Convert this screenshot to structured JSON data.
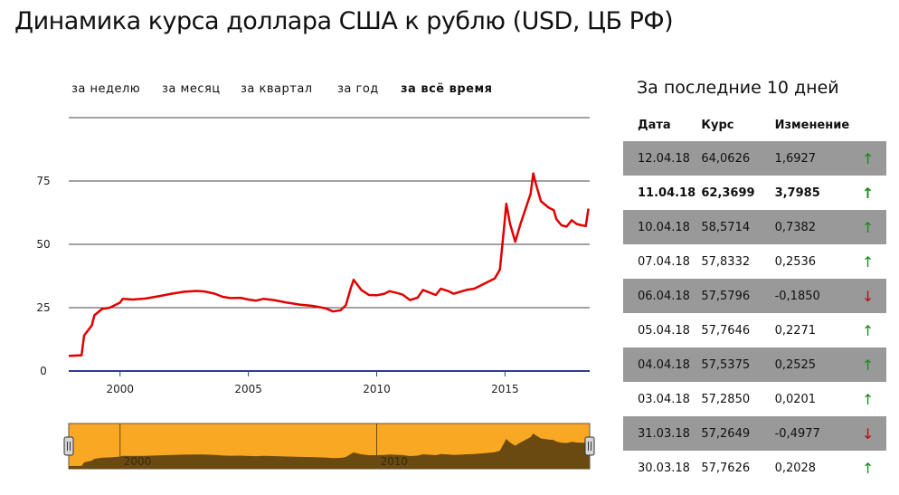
{
  "title": "Динамика курса доллара США к рублю (USD, ЦБ РФ)",
  "periods": [
    {
      "label": "за неделю",
      "active": false
    },
    {
      "label": "за месяц",
      "active": false
    },
    {
      "label": "за квартал",
      "active": false
    },
    {
      "label": "за год",
      "active": false
    },
    {
      "label": "за всё время",
      "active": true
    }
  ],
  "side_title": "За последние 10 дней",
  "table": {
    "headers": [
      "Дата",
      "Курс",
      "Изменение"
    ],
    "rows": [
      {
        "date": "12.04.18",
        "rate": "64,0626",
        "change": "1,6927",
        "dir": "up"
      },
      {
        "date": "11.04.18",
        "rate": "62,3699",
        "change": "3,7985",
        "dir": "up"
      },
      {
        "date": "10.04.18",
        "rate": "58,5714",
        "change": "0,7382",
        "dir": "up"
      },
      {
        "date": "07.04.18",
        "rate": "57,8332",
        "change": "0,2536",
        "dir": "up"
      },
      {
        "date": "06.04.18",
        "rate": "57,5796",
        "change": "-0,1850",
        "dir": "down"
      },
      {
        "date": "05.04.18",
        "rate": "57,7646",
        "change": "0,2271",
        "dir": "up"
      },
      {
        "date": "04.04.18",
        "rate": "57,5375",
        "change": "0,2525",
        "dir": "up"
      },
      {
        "date": "03.04.18",
        "rate": "57,2850",
        "change": "0,0201",
        "dir": "up"
      },
      {
        "date": "31.03.18",
        "rate": "57,2649",
        "change": "-0,4977",
        "dir": "down"
      },
      {
        "date": "30.03.18",
        "rate": "57,7626",
        "change": "0,2028",
        "dir": "up"
      }
    ]
  },
  "chart_data": {
    "type": "line",
    "title": "Динамика курса доллара США к рублю (USD, ЦБ РФ)",
    "xlabel": "",
    "ylabel": "",
    "xlim": [
      1998,
      2018.3
    ],
    "ylim": [
      0,
      100
    ],
    "grid": true,
    "y_ticks": [
      0,
      25,
      50,
      75
    ],
    "y_tick_labels": [
      "0",
      "25",
      "50",
      "75"
    ],
    "x_ticks": [
      2000,
      2005,
      2010,
      2015
    ],
    "x_tick_labels": [
      "2000",
      "2005",
      "2010",
      "2015"
    ],
    "series": [
      {
        "color": "#e00000",
        "points": [
          [
            1998.0,
            6.0
          ],
          [
            1998.5,
            6.2
          ],
          [
            1998.6,
            14
          ],
          [
            1998.9,
            18
          ],
          [
            1999.0,
            22
          ],
          [
            1999.3,
            24.5
          ],
          [
            1999.6,
            25
          ],
          [
            2000.0,
            27
          ],
          [
            2000.1,
            28.5
          ],
          [
            2000.5,
            28.2
          ],
          [
            2001.0,
            28.6
          ],
          [
            2001.5,
            29.5
          ],
          [
            2002.0,
            30.5
          ],
          [
            2002.5,
            31.3
          ],
          [
            2003.0,
            31.6
          ],
          [
            2003.3,
            31.4
          ],
          [
            2003.7,
            30.5
          ],
          [
            2004.0,
            29.3
          ],
          [
            2004.3,
            28.8
          ],
          [
            2004.7,
            28.9
          ],
          [
            2005.0,
            28.2
          ],
          [
            2005.3,
            27.8
          ],
          [
            2005.6,
            28.5
          ],
          [
            2006.0,
            28.0
          ],
          [
            2006.5,
            27.0
          ],
          [
            2007.0,
            26.2
          ],
          [
            2007.5,
            25.7
          ],
          [
            2008.0,
            24.8
          ],
          [
            2008.3,
            23.5
          ],
          [
            2008.6,
            24.0
          ],
          [
            2008.8,
            26
          ],
          [
            2009.0,
            33
          ],
          [
            2009.1,
            36
          ],
          [
            2009.4,
            32
          ],
          [
            2009.7,
            30
          ],
          [
            2010.0,
            29.9
          ],
          [
            2010.3,
            30.5
          ],
          [
            2010.5,
            31.5
          ],
          [
            2010.8,
            30.8
          ],
          [
            2011.0,
            30.2
          ],
          [
            2011.3,
            28
          ],
          [
            2011.6,
            29
          ],
          [
            2011.8,
            32
          ],
          [
            2012.0,
            31.2
          ],
          [
            2012.3,
            30.0
          ],
          [
            2012.5,
            32.5
          ],
          [
            2012.8,
            31.5
          ],
          [
            2013.0,
            30.5
          ],
          [
            2013.5,
            32.0
          ],
          [
            2013.8,
            32.5
          ],
          [
            2014.0,
            33.5
          ],
          [
            2014.3,
            35
          ],
          [
            2014.6,
            36.5
          ],
          [
            2014.8,
            40
          ],
          [
            2014.95,
            55
          ],
          [
            2015.05,
            66
          ],
          [
            2015.2,
            58
          ],
          [
            2015.4,
            51
          ],
          [
            2015.6,
            58
          ],
          [
            2015.8,
            64
          ],
          [
            2016.0,
            70
          ],
          [
            2016.1,
            78
          ],
          [
            2016.2,
            74
          ],
          [
            2016.4,
            67
          ],
          [
            2016.7,
            64.5
          ],
          [
            2016.9,
            63.5
          ],
          [
            2017.0,
            60
          ],
          [
            2017.2,
            57.5
          ],
          [
            2017.4,
            57
          ],
          [
            2017.6,
            59.5
          ],
          [
            2017.8,
            58
          ],
          [
            2018.0,
            57.5
          ],
          [
            2018.15,
            57.2
          ],
          [
            2018.25,
            64.06
          ]
        ]
      }
    ]
  },
  "navigator": {
    "x_tick_labels": [
      "2000",
      "2010"
    ],
    "fill_color": "#f9a824",
    "area_color": "#6b4a12"
  }
}
